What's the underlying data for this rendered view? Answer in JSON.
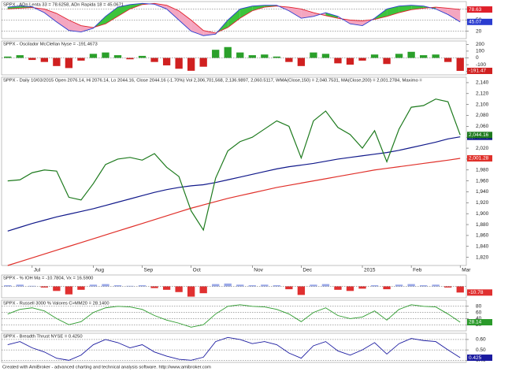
{
  "chart_data": [
    {
      "type": "line",
      "band": true,
      "title": "SPPX - ADn Lenta 33 = 78.6258, ADn Rapida 18 = 45.0671",
      "ylim": [
        0,
        100
      ],
      "yticks": [
        80,
        50,
        20
      ],
      "grid": true,
      "series": [
        {
          "color": "#e0202a",
          "last_label": "78.63",
          "values": [
            80,
            82,
            84,
            80,
            68,
            50,
            35,
            30,
            40,
            60,
            80,
            92,
            95,
            90,
            75,
            50,
            22,
            15,
            30,
            55,
            75,
            85,
            88,
            85,
            80,
            70,
            62,
            55,
            50,
            48,
            52,
            60,
            70,
            78,
            82,
            85,
            82,
            78.6258
          ]
        },
        {
          "color": "#2a3cd0",
          "last_label": "45.07",
          "values": [
            85,
            88,
            86,
            70,
            45,
            22,
            18,
            28,
            60,
            85,
            92,
            95,
            93,
            80,
            50,
            20,
            8,
            12,
            50,
            80,
            88,
            90,
            90,
            75,
            55,
            60,
            70,
            60,
            40,
            35,
            55,
            80,
            88,
            90,
            88,
            80,
            65,
            45.0671
          ]
        }
      ]
    },
    {
      "type": "bar",
      "title": "SPPX - Oscilador McClellan Nyse = -191.4673",
      "ylim": [
        -250,
        250
      ],
      "yticks": [
        200,
        100,
        0,
        -100,
        -200
      ],
      "grid": false,
      "colors": [
        "#2aa02a",
        "#d02020"
      ],
      "last_label": "-191.47",
      "values": [
        20,
        40,
        -30,
        -60,
        -120,
        -150,
        -40,
        60,
        80,
        40,
        -20,
        30,
        -60,
        -110,
        -160,
        -190,
        -130,
        120,
        160,
        80,
        40,
        50,
        20,
        -60,
        -120,
        80,
        60,
        -80,
        -100,
        -40,
        50,
        -90,
        60,
        90,
        40,
        50,
        -60,
        -191.4673
      ]
    },
    {
      "type": "line",
      "title": "SPPX - Daily 10/03/2015 Open 2076.14, Hi 2076.14, Lo 2044.16, Close 2044.16 (-1.70%) Vol 2,306,701,568, 2,136.9897, 2,060.5117, WMA(Close,150) = 2,040.7531, MA(Close,200) = 2,001.2784, Maximo =",
      "ylim": [
        1805,
        2150
      ],
      "grid": false,
      "yticks": [
        {
          "value": 1820,
          "label": "1,820"
        },
        {
          "value": 1840,
          "label": "1,840"
        },
        {
          "value": 1860,
          "label": "1,860"
        },
        {
          "value": 1880,
          "label": "1,880"
        },
        {
          "value": 1900,
          "label": "1,900"
        },
        {
          "value": 1920,
          "label": "1,920"
        },
        {
          "value": 1940,
          "label": "1,940"
        },
        {
          "value": 1960,
          "label": "1,960"
        },
        {
          "value": 1980,
          "label": "1,980"
        },
        {
          "value": 2000,
          "label": "2,000"
        },
        {
          "value": 2020,
          "label": "2,020"
        },
        {
          "value": 2040,
          "label": "2,040"
        },
        {
          "value": 2060,
          "label": "2,060"
        },
        {
          "value": 2080,
          "label": "2,080"
        },
        {
          "value": 2100,
          "label": "2,100"
        },
        {
          "value": 2120,
          "label": "2,120"
        },
        {
          "value": 2140,
          "label": "2,140"
        }
      ],
      "categories": [
        null,
        null,
        "Jul",
        null,
        null,
        null,
        null,
        "Aug",
        null,
        null,
        null,
        "Sep",
        null,
        null,
        null,
        "Oct",
        null,
        null,
        null,
        null,
        "Nov",
        null,
        null,
        null,
        "Dec",
        null,
        null,
        null,
        null,
        "2015",
        null,
        null,
        null,
        "Feb",
        null,
        null,
        null,
        "Mar"
      ],
      "series": [
        {
          "color": "#e0302a",
          "last_label": "2,001.28",
          "values": [
            1805,
            1812,
            1819,
            1826,
            1833,
            1840,
            1847,
            1854,
            1861,
            1868,
            1875,
            1882,
            1889,
            1896,
            1903,
            1910,
            1916,
            1922,
            1928,
            1933,
            1938,
            1943,
            1948,
            1952,
            1956,
            1960,
            1964,
            1968,
            1972,
            1976,
            1980,
            1983,
            1986,
            1989,
            1992,
            1995,
            1998,
            2001.2784
          ]
        },
        {
          "color": "#10188a",
          "last_label": "2,040.75",
          "values": [
            1868,
            1875,
            1882,
            1888,
            1894,
            1899,
            1904,
            1909,
            1915,
            1921,
            1927,
            1933,
            1939,
            1944,
            1948,
            1951,
            1953,
            1957,
            1962,
            1967,
            1972,
            1977,
            1982,
            1986,
            1989,
            1992,
            1996,
            2000,
            2003,
            2006,
            2009,
            2012,
            2016,
            2021,
            2026,
            2031,
            2037,
            2040.7531
          ]
        },
        {
          "color": "#1d7a1d",
          "last_label": "2,044.16",
          "values": [
            1960,
            1962,
            1975,
            1980,
            1978,
            1930,
            1925,
            1955,
            1990,
            2000,
            2003,
            1998,
            2010,
            1985,
            1968,
            1905,
            1870,
            1965,
            2015,
            2032,
            2040,
            2055,
            2070,
            2060,
            2002,
            2070,
            2088,
            2058,
            2045,
            2020,
            2052,
            1995,
            2055,
            2095,
            2098,
            2110,
            2105,
            2044.16
          ]
        }
      ]
    },
    {
      "type": "bar",
      "title": "SPPX - % IOH Ma = -10.7804, Vx = 16.5900",
      "ylim": [
        -20,
        20
      ],
      "yticks": [],
      "grid": false,
      "colors": [
        "#9aa8e8",
        "#e03030"
      ],
      "last_label": "-10.78",
      "values": [
        2,
        3,
        1,
        -2,
        -8,
        -14,
        -6,
        3,
        4,
        2,
        1,
        2,
        -3,
        -6,
        -10,
        -18,
        -12,
        4,
        5,
        3,
        2,
        3,
        2,
        -5,
        -15,
        3,
        4,
        -6,
        -8,
        -4,
        2,
        -5,
        3,
        4,
        2,
        3,
        -2,
        -10.7804
      ]
    },
    {
      "type": "line",
      "title": "SPPX - Russell 3000 % Valores C>MM20 = 28.1400",
      "ylim": [
        0,
        100
      ],
      "yticks": [
        80,
        60,
        40,
        20
      ],
      "grid": true,
      "series": [
        {
          "color": "#2a9a2a",
          "last_label": "28.14",
          "values": [
            55,
            70,
            75,
            65,
            40,
            20,
            30,
            60,
            75,
            80,
            78,
            70,
            50,
            35,
            25,
            12,
            20,
            55,
            80,
            85,
            80,
            78,
            70,
            55,
            30,
            60,
            75,
            50,
            40,
            45,
            65,
            35,
            70,
            85,
            80,
            78,
            55,
            28.14
          ]
        }
      ]
    },
    {
      "type": "line",
      "title": "SPPX - Breadth Thrust NYSE = 0.4250",
      "ylim": [
        0.38,
        0.66
      ],
      "yticks": [
        {
          "value": 0.6,
          "label": "0.60"
        },
        {
          "value": 0.5,
          "label": "0.50"
        },
        {
          "value": 0.4,
          "label": "0.40"
        }
      ],
      "grid": true,
      "series": [
        {
          "color": "#1a1aa0",
          "last_label": "0.425",
          "values": [
            0.55,
            0.58,
            0.52,
            0.48,
            0.42,
            0.4,
            0.45,
            0.55,
            0.6,
            0.57,
            0.52,
            0.55,
            0.48,
            0.44,
            0.41,
            0.4,
            0.43,
            0.58,
            0.62,
            0.6,
            0.56,
            0.58,
            0.55,
            0.47,
            0.42,
            0.54,
            0.58,
            0.49,
            0.45,
            0.5,
            0.57,
            0.46,
            0.56,
            0.61,
            0.59,
            0.58,
            0.5,
            0.425
          ]
        }
      ]
    }
  ],
  "footer": "Created with AmiBroker - advanced charting and technical analysis software. http://www.amibroker.com"
}
